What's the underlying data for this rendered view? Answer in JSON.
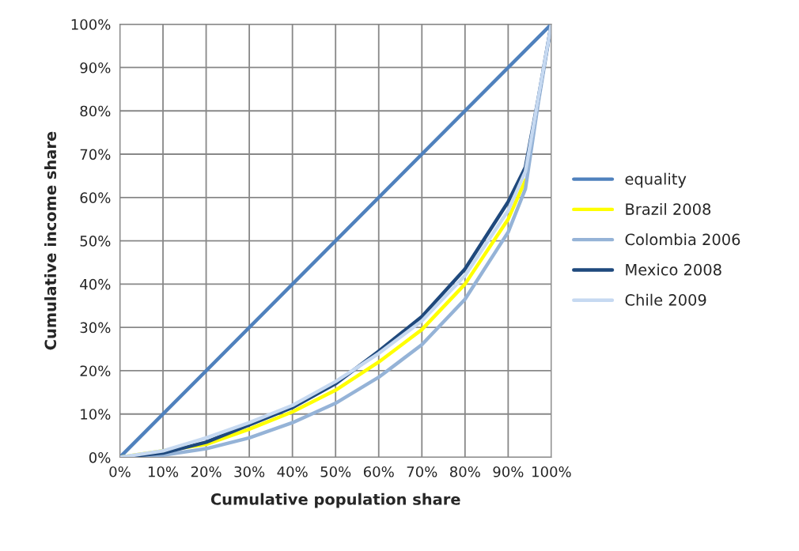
{
  "chart_data": {
    "type": "line",
    "xlabel": "Cumulative population share",
    "ylabel": "Cumulative income share",
    "x": [
      0,
      10,
      20,
      30,
      40,
      50,
      60,
      70,
      80,
      90,
      94,
      97,
      100
    ],
    "series": [
      {
        "name": "equality",
        "color": "#4f81bd",
        "x": [
          0,
          100
        ],
        "values": [
          0,
          100
        ]
      },
      {
        "name": "Brazil 2008",
        "color": "#ffff00",
        "values": [
          0,
          null,
          3,
          6.5,
          10.5,
          15.5,
          22,
          29.5,
          40,
          55,
          64,
          null,
          null
        ]
      },
      {
        "name": "Colombia 2006",
        "color": "#95b3d7",
        "values": [
          0,
          0.5,
          2,
          4.5,
          8,
          12.5,
          18.5,
          26,
          36.5,
          52,
          62,
          82,
          100
        ]
      },
      {
        "name": "Mexico 2008",
        "color": "#1f497d",
        "values": [
          0,
          1,
          3.5,
          7.5,
          11.5,
          17,
          24.5,
          32.5,
          43.5,
          59,
          67,
          83,
          100
        ]
      },
      {
        "name": "Chile 2009",
        "color": "#c6d9f1",
        "values": [
          0,
          1.5,
          4.5,
          8,
          12,
          17.5,
          24,
          31.5,
          42,
          57,
          66,
          83,
          100
        ]
      }
    ],
    "xlim": [
      0,
      100
    ],
    "ylim": [
      0,
      100
    ],
    "xticks": [
      {
        "value": 0,
        "label": "0%"
      },
      {
        "value": 10,
        "label": "10%"
      },
      {
        "value": 20,
        "label": "20%"
      },
      {
        "value": 30,
        "label": "30%"
      },
      {
        "value": 40,
        "label": "40%"
      },
      {
        "value": 50,
        "label": "50%"
      },
      {
        "value": 60,
        "label": "60%"
      },
      {
        "value": 70,
        "label": "70%"
      },
      {
        "value": 80,
        "label": "80%"
      },
      {
        "value": 90,
        "label": "90%"
      },
      {
        "value": 100,
        "label": "100%"
      }
    ],
    "yticks": [
      {
        "value": 0,
        "label": "0%"
      },
      {
        "value": 10,
        "label": "10%"
      },
      {
        "value": 20,
        "label": "20%"
      },
      {
        "value": 30,
        "label": "30%"
      },
      {
        "value": 40,
        "label": "40%"
      },
      {
        "value": 50,
        "label": "50%"
      },
      {
        "value": 60,
        "label": "60%"
      },
      {
        "value": 70,
        "label": "70%"
      },
      {
        "value": 80,
        "label": "80%"
      },
      {
        "value": 90,
        "label": "90%"
      },
      {
        "value": 100,
        "label": "100%"
      }
    ],
    "grid": true,
    "legend": "right"
  }
}
